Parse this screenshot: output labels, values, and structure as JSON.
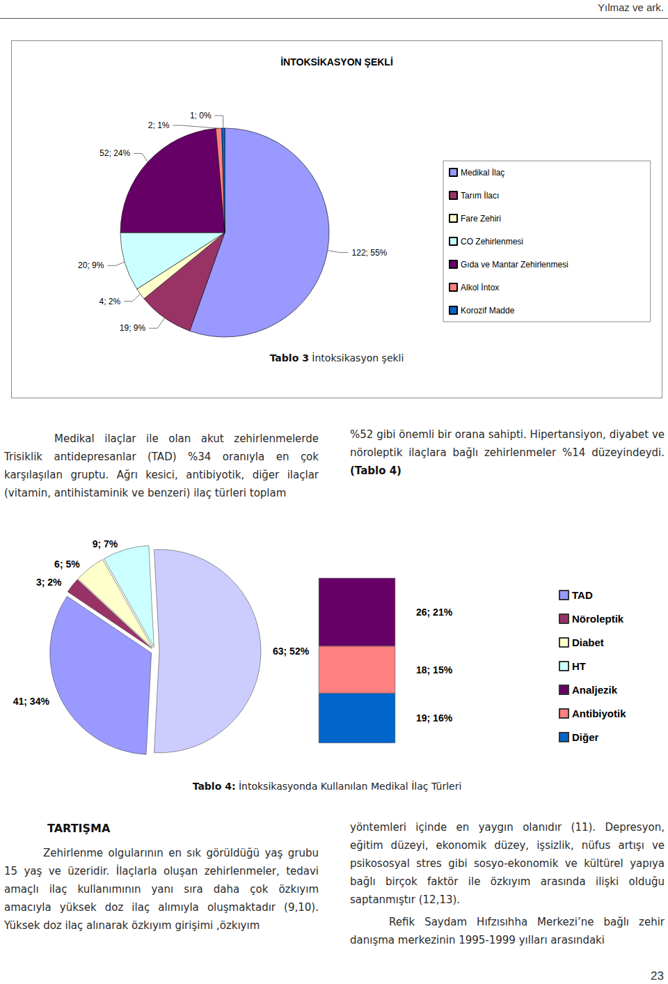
{
  "header": "Yılmaz ve ark.",
  "chart_data": [
    {
      "type": "pie",
      "title": "İNTOKSİKASYON ŞEKLİ",
      "caption_label": "Tablo 3",
      "caption": "İntoksikasyon şekli",
      "categories": [
        "Medikal İlaç",
        "Tarım İlacı",
        "Fare Zehiri",
        "CO Zehirlenmesi",
        "Gıda ve Mantar Zehirlenmesi",
        "Alkol İntox",
        "Korozif Madde"
      ],
      "values": [
        122,
        19,
        4,
        20,
        52,
        2,
        1
      ],
      "value_labels": [
        "122; 55%",
        "19; 9%",
        "4; 2%",
        "20; 9%",
        "52; 24%",
        "2; 1%",
        "1; 0%"
      ],
      "colors": [
        "#9999ff",
        "#993366",
        "#ffffcc",
        "#ccffff",
        "#660066",
        "#ff8080",
        "#0066cc"
      ],
      "legend": "right",
      "data_labels": true
    },
    {
      "type": "bar_of_pie",
      "caption_label": "Tablo 4:",
      "caption": "İntoksikasyonda Kullanılan Medikal İlaç Türleri",
      "categories": [
        "TAD",
        "Nöroleptik",
        "Diabet",
        "HT"
      ],
      "values": [
        41,
        3,
        6,
        9
      ],
      "value_labels": [
        "41; 34%",
        "3; 2%",
        "6; 5%",
        "9; 7%"
      ],
      "colors": [
        "#9999ff",
        "#993366",
        "#ffffcc",
        "#ccffff"
      ],
      "other": {
        "value": 63,
        "label": "63; 52%",
        "color": "#ccccff"
      },
      "breakdown": {
        "categories": [
          "Analjezik",
          "Antibiyotik",
          "Diğer"
        ],
        "values": [
          26,
          18,
          19
        ],
        "value_labels": [
          "26; 21%",
          "18; 15%",
          "19; 16%"
        ],
        "colors": [
          "#660066",
          "#ff8080",
          "#0066cc"
        ]
      },
      "legend": "right",
      "data_labels": true
    }
  ],
  "results": {
    "left": "Medikal ilaçlar ile olan akut zehirlenmelerde Trisiklik antidepresanlar (TAD) %34 oranıyla en çok karşılaşılan gruptu. Ağrı kesici, antibiyotik, diğer ilaçlar (vitamin, antihistaminik ve benzeri) ilaç türleri toplam",
    "right": "%52 gibi önemli bir orana sahipti. Hipertansiyon, diyabet ve nöroleptik ilaçlara bağlı zehirlenmeler %14 düzeyindeydi.",
    "reference": "(Tablo 4)"
  },
  "discussion": {
    "heading": "TARTIŞMA",
    "left": "Zehirlenme olgularının en sık görüldüğü yaş grubu 15 yaş ve üzeridir. İlaçlarla oluşan zehirlenmeler, tedavi amaçlı ilaç kullanımının yanı sıra daha çok özkıyım amacıyla yüksek doz ilaç alımıyla oluşmaktadır (9,10). Yüksek doz ilaç alınarak özkıyım girişimi ,özkıyım",
    "right": "yöntemleri içinde en yaygın olanıdır (11). Depresyon, eğitim düzeyi, ekonomik düzey, işsizlik, nüfus artışı ve psikososyal stres gibi sosyo-ekonomik ve kültürel yapıya bağlı birçok faktör ile özkıyım arasında ilişki olduğu saptanmıştır (12,13).",
    "next_paragraph": "Refik Saydam Hıfzısıhha Merkezi’ne bağlı zehir danışma merkezinin 1995-1999 yılları arasındaki"
  },
  "page_number": "23"
}
